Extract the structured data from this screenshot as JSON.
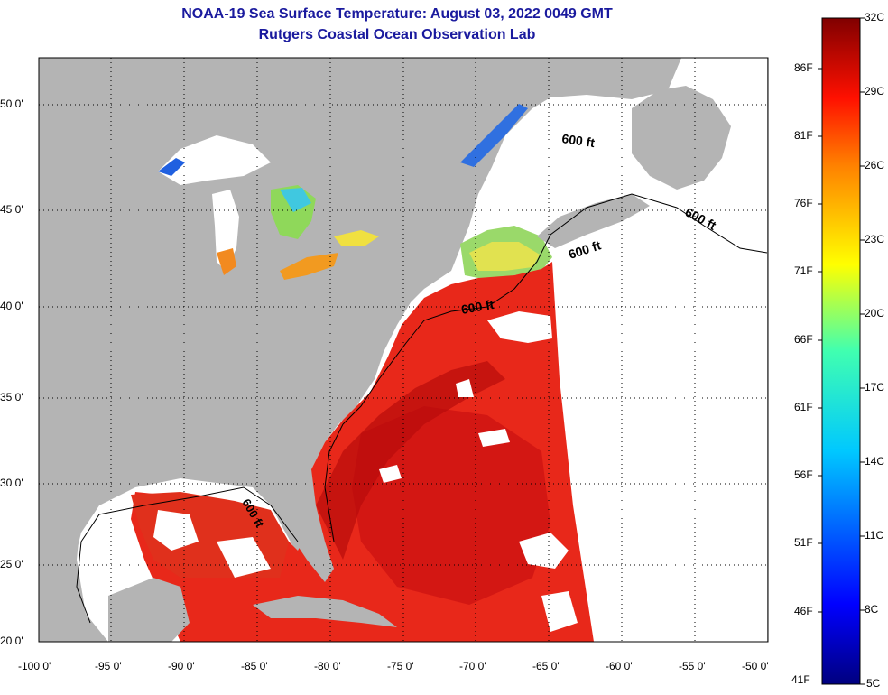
{
  "title": {
    "line1": "NOAA-19 Sea Surface Temperature:  August 03, 2022 0049 GMT",
    "line2": "Rutgers Coastal Ocean Observation Lab"
  },
  "map": {
    "lon_ticks": [
      "-100 0'",
      "-95 0'",
      "-90 0'",
      "-85 0'",
      "-80 0'",
      "-75 0'",
      "-70 0'",
      "-65 0'",
      "-60 0'",
      "-55 0'",
      "-50 0'"
    ],
    "lat_ticks": [
      "50 0'",
      "45 0'",
      "40 0'",
      "35 0'",
      "30 0'",
      "25 0'",
      "20 0'"
    ],
    "contour_label": "600 ft",
    "colors": {
      "land": "#b4b4b4",
      "ocean_warm": "#e8281a",
      "ocean_hot": "#c81010",
      "cloud": "#ffffff"
    }
  },
  "colorbar": {
    "celsius": [
      "32C",
      "29C",
      "26C",
      "23C",
      "20C",
      "17C",
      "14C",
      "11C",
      "8C",
      "5C"
    ],
    "fahrenheit": [
      "86F",
      "81F",
      "76F",
      "71F",
      "66F",
      "61F",
      "56F",
      "51F",
      "46F",
      "41F"
    ]
  }
}
